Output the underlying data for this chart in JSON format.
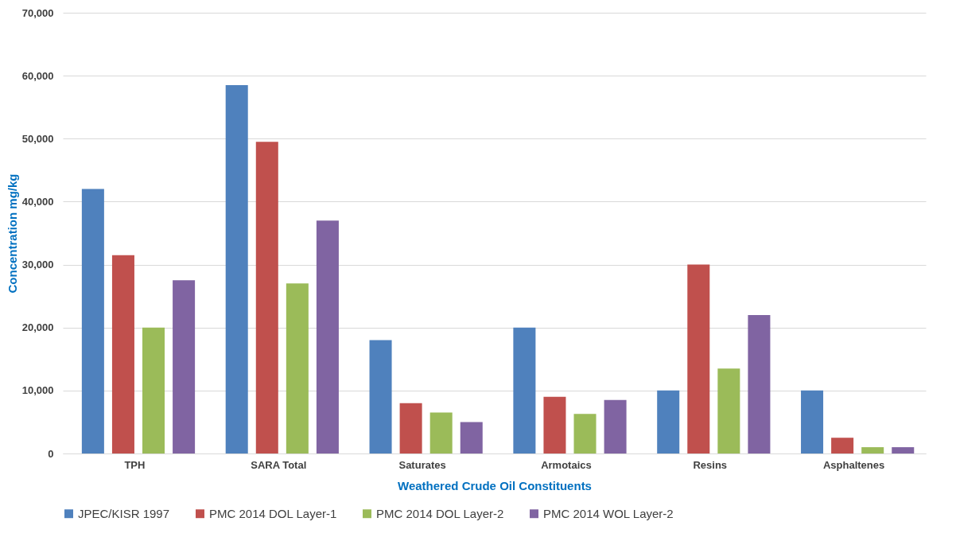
{
  "chart_data": {
    "type": "bar",
    "xlabel": "Weathered Crude Oil Constituents",
    "ylabel": "Concentration mg/kg",
    "categories": [
      "TPH",
      "SARA Total",
      "Saturates",
      "Armotaics",
      "Resins",
      "Asphaltenes"
    ],
    "series": [
      {
        "name": "JPEC/KISR 1997",
        "color": "#4f81bd",
        "values": [
          42000,
          58500,
          18000,
          20000,
          10000,
          10000
        ]
      },
      {
        "name": "PMC 2014 DOL Layer-1",
        "color": "#c0504d",
        "values": [
          31500,
          49500,
          8000,
          9000,
          30000,
          2500
        ]
      },
      {
        "name": "PMC 2014 DOL Layer-2",
        "color": "#9bbb59",
        "values": [
          20000,
          27000,
          6500,
          6300,
          13500,
          1000
        ]
      },
      {
        "name": "PMC 2014 WOL Layer-2",
        "color": "#8064a2",
        "values": [
          27500,
          37000,
          5000,
          8500,
          22000,
          1000
        ]
      }
    ],
    "ylim": [
      0,
      70000
    ],
    "yticks": [
      {
        "value": 0,
        "label": "0"
      },
      {
        "value": 10000,
        "label": "10,000"
      },
      {
        "value": 20000,
        "label": "20,000"
      },
      {
        "value": 30000,
        "label": "30,000"
      },
      {
        "value": 40000,
        "label": "40,000"
      },
      {
        "value": 50000,
        "label": "50,000"
      },
      {
        "value": 60000,
        "label": "60,000"
      },
      {
        "value": 70000,
        "label": "70,000"
      }
    ],
    "grid": "y",
    "legend": "bottom"
  }
}
